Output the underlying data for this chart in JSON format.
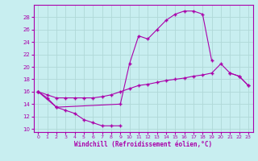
{
  "xlabel": "Windchill (Refroidissement éolien,°C)",
  "xlim": [
    -0.5,
    23.5
  ],
  "ylim": [
    9.5,
    30
  ],
  "yticks": [
    10,
    12,
    14,
    16,
    18,
    20,
    22,
    24,
    26,
    28
  ],
  "xticks": [
    0,
    1,
    2,
    3,
    4,
    5,
    6,
    7,
    8,
    9,
    10,
    11,
    12,
    13,
    14,
    15,
    16,
    17,
    18,
    19,
    20,
    21,
    22,
    23
  ],
  "background_color": "#c8eef0",
  "grid_color": "#b0d8d8",
  "line_color": "#aa00aa",
  "line1": {
    "x": [
      0,
      1,
      2,
      3,
      4,
      5,
      6,
      7,
      8,
      9
    ],
    "y": [
      16.0,
      15.0,
      13.5,
      13.0,
      12.5,
      11.5,
      11.0,
      10.5,
      10.5,
      10.5
    ]
  },
  "line2": {
    "x": [
      0,
      2,
      9,
      10,
      11,
      12,
      13,
      14,
      15,
      16,
      17,
      18,
      19,
      21,
      22,
      23
    ],
    "y": [
      16.0,
      13.5,
      14.0,
      20.5,
      25.0,
      24.5,
      26.0,
      27.5,
      28.5,
      29.0,
      29.0,
      28.5,
      21.0,
      19.0,
      18.5,
      17.0
    ]
  },
  "line3": {
    "x": [
      0,
      1,
      2,
      3,
      4,
      5,
      6,
      7,
      8,
      9,
      10,
      11,
      12,
      13,
      14,
      15,
      16,
      17,
      18,
      19,
      20,
      21,
      22,
      23
    ],
    "y": [
      16.0,
      15.5,
      15.0,
      15.0,
      15.0,
      15.0,
      15.0,
      15.2,
      15.5,
      16.0,
      16.5,
      17.0,
      17.2,
      17.5,
      17.8,
      18.0,
      18.2,
      18.5,
      18.7,
      19.0,
      20.5,
      19.0,
      18.5,
      17.0
    ]
  }
}
